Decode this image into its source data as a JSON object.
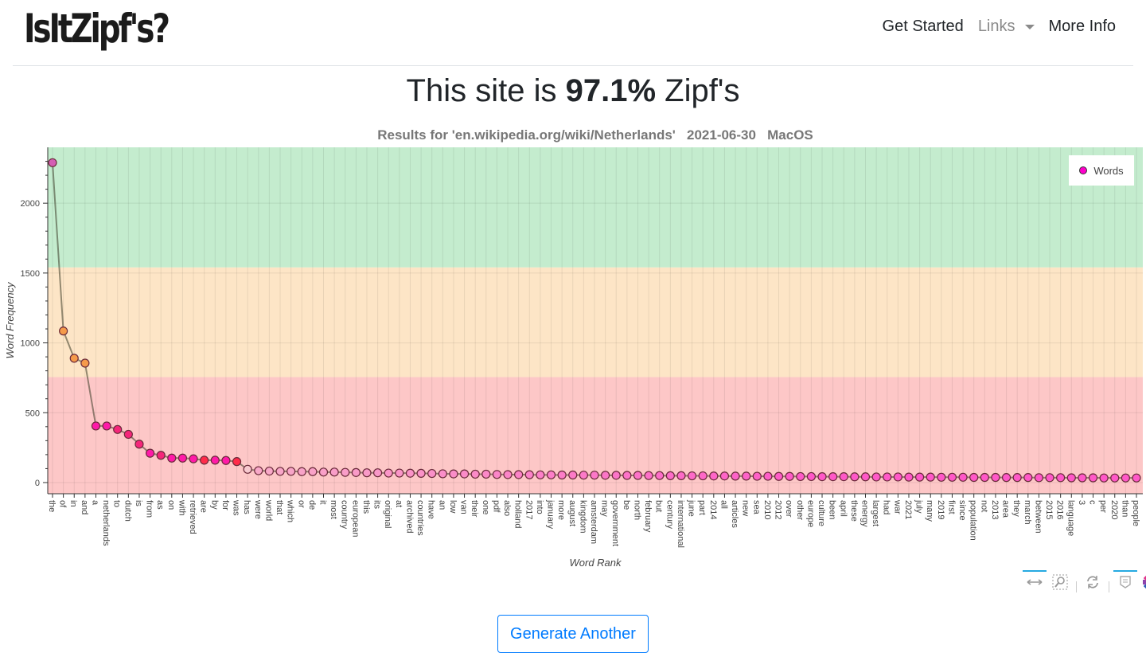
{
  "navbar": {
    "brand": "IsItZipf's?",
    "links": [
      {
        "label": "Get Started",
        "muted": false
      },
      {
        "label": "Links",
        "muted": true,
        "dropdown": true
      },
      {
        "label": "More Info",
        "muted": false
      }
    ]
  },
  "headline": {
    "prefix": "This site is ",
    "percent": "97.1%",
    "suffix": " Zipf's"
  },
  "plot": {
    "title": "Results for 'en.wikipedia.org/wiki/Netherlands'   2021-06-30   MacOS",
    "legend_label": "Words",
    "toolbar": [
      "pan-icon",
      "box-zoom-icon",
      "reset-icon",
      "hover-icon",
      "bokeh-logo-icon"
    ]
  },
  "generate_button": "Generate Another",
  "chart_data": {
    "type": "line",
    "title": "Results for 'en.wikipedia.org/wiki/Netherlands'   2021-06-30   MacOS",
    "xlabel": "Word Rank",
    "ylabel": "Word Frequency",
    "ylim": [
      -80,
      2400
    ],
    "yticks": [
      0,
      500,
      1000,
      1500,
      2000
    ],
    "grid": true,
    "legend": {
      "entries": [
        "Words"
      ],
      "position": "top-right"
    },
    "bands": [
      {
        "from": 1540,
        "to": 2400,
        "color": "#c4ecce"
      },
      {
        "from": 755,
        "to": 1540,
        "color": "#fde5c6"
      },
      {
        "from": -80,
        "to": 755,
        "color": "#fdc7c7"
      }
    ],
    "categories": [
      "the",
      "of",
      "in",
      "and",
      "a",
      "netherlands",
      "to",
      "dutch",
      "is",
      "from",
      "as",
      "on",
      "with",
      "retrieved",
      "are",
      "by",
      "for",
      "was",
      "has",
      "were",
      "world",
      "that",
      "which",
      "or",
      "de",
      "it",
      "most",
      "country",
      "european",
      "this",
      "its",
      "original",
      "at",
      "archived",
      "countries",
      "have",
      "an",
      "low",
      "van",
      "their",
      "one",
      "pdf",
      "also",
      "holland",
      "2017",
      "into",
      "january",
      "more",
      "august",
      "kingdom",
      "amsterdam",
      "may",
      "government",
      "be",
      "north",
      "february",
      "but",
      "century",
      "international",
      "june",
      "part",
      "2014",
      "all",
      "articles",
      "new",
      "sea",
      "2010",
      "2012",
      "over",
      "other",
      "europe",
      "culture",
      "been",
      "april",
      "these",
      "energy",
      "largest",
      "had",
      "war",
      "2021",
      "july",
      "many",
      "2019",
      "first",
      "since",
      "population",
      "not",
      "2013",
      "area",
      "they",
      "march",
      "between",
      "2015",
      "2016",
      "language",
      "3",
      "c",
      "per",
      "2020",
      "than",
      "people"
    ],
    "series": [
      {
        "name": "Words",
        "values": [
          2290,
          1085,
          890,
          855,
          405,
          405,
          380,
          345,
          275,
          210,
          195,
          175,
          175,
          170,
          160,
          160,
          158,
          150,
          95,
          85,
          82,
          80,
          80,
          78,
          78,
          75,
          75,
          73,
          72,
          70,
          70,
          68,
          68,
          67,
          66,
          65,
          63,
          62,
          62,
          60,
          60,
          58,
          57,
          57,
          56,
          55,
          55,
          54,
          54,
          53,
          53,
          52,
          52,
          51,
          51,
          50,
          50,
          49,
          49,
          48,
          48,
          47,
          47,
          46,
          46,
          45,
          45,
          44,
          44,
          43,
          43,
          42,
          42,
          42,
          41,
          41,
          40,
          40,
          40,
          39,
          39,
          39,
          38,
          38,
          38,
          37,
          37,
          37,
          36,
          36,
          36,
          35,
          35,
          35,
          34,
          34,
          34,
          33,
          33,
          33,
          33
        ],
        "colors": [
          "#d45fb4",
          "#f59a4a",
          "#f59a4a",
          "#f59a4a",
          "#ff1aa8",
          "#ff1aa8",
          "#f5267a",
          "#f5267a",
          "#f5267a",
          "#ff1aa8",
          "#f5267a",
          "#ff1aa8",
          "#ff1aa8",
          "#ff1aa8",
          "#ff2b4a",
          "#ff1aa8",
          "#ff1aa8",
          "#ff2b4a",
          "#f7c9cf",
          "#f8a8c8"
        ]
      }
    ]
  }
}
